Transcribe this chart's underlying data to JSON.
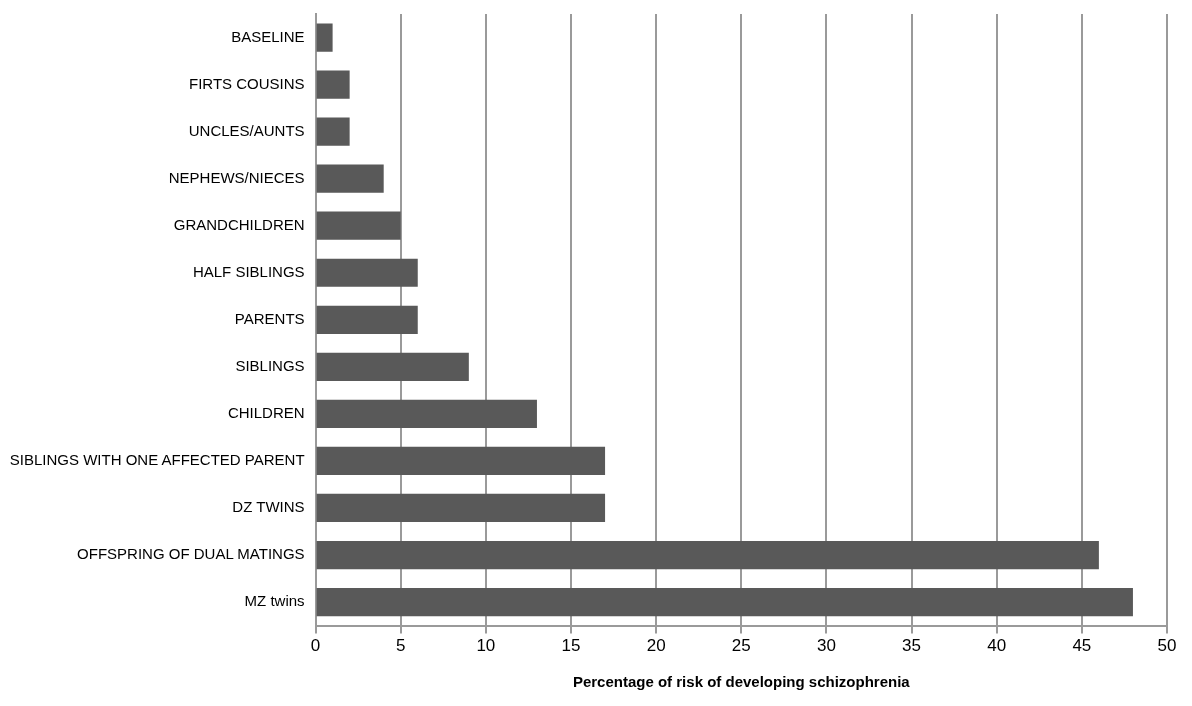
{
  "chart_data": {
    "type": "bar",
    "orientation": "horizontal",
    "xlabel": "Percentage of risk of developing schizophrenia",
    "categories": [
      "BASELINE",
      "FIRTS COUSINS",
      "UNCLES/AUNTS",
      "NEPHEWS/NIECES",
      "GRANDCHILDREN",
      "HALF SIBLINGS",
      "PARENTS",
      "SIBLINGS",
      "CHILDREN",
      "SIBLINGS WITH ONE AFFECTED PARENT",
      "DZ TWINS",
      "OFFSPRING OF DUAL MATINGS",
      "MZ twins"
    ],
    "values": [
      1,
      2,
      2,
      4,
      5,
      6,
      6,
      9,
      13,
      17,
      17,
      46,
      48
    ],
    "color": "#595959",
    "xlim": [
      0,
      50
    ],
    "xticks": [
      0,
      5,
      10,
      15,
      20,
      25,
      30,
      35,
      40,
      45,
      50
    ],
    "grid": "x",
    "legend": false
  }
}
